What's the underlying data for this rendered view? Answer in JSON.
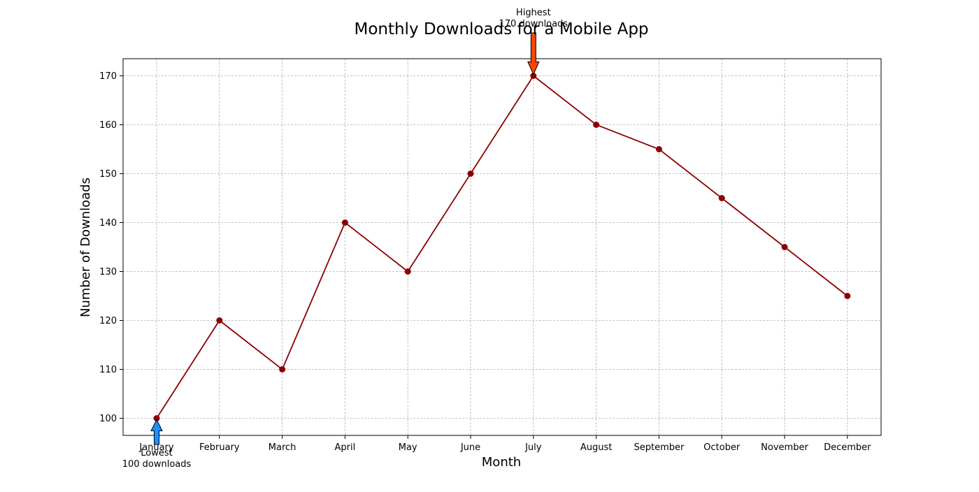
{
  "chart_data": {
    "type": "line",
    "title": "Monthly Downloads for a Mobile App",
    "xlabel": "Month",
    "ylabel": "Number of Downloads",
    "categories": [
      "January",
      "February",
      "March",
      "April",
      "May",
      "June",
      "July",
      "August",
      "September",
      "October",
      "November",
      "December"
    ],
    "series": [
      {
        "values": [
          100,
          120,
          110,
          140,
          130,
          150,
          170,
          160,
          155,
          145,
          135,
          125
        ]
      }
    ],
    "ylim": [
      96.5,
      173.5
    ],
    "yticks": [
      "100",
      "110",
      "120",
      "130",
      "140",
      "150",
      "160",
      "170"
    ],
    "grid": true,
    "colors": {
      "line": "#8b0000",
      "marker": "#8b0000",
      "grid": "#b0b0b0",
      "highest_arrow": "#ff4500",
      "lowest_arrow": "#1e90ff"
    },
    "annotations": {
      "highest": {
        "category": "July",
        "value": 170,
        "line1": "Highest",
        "line2": "170 downloads"
      },
      "lowest": {
        "category": "January",
        "value": 100,
        "line1": "Lowest",
        "line2": "100 downloads"
      }
    }
  }
}
